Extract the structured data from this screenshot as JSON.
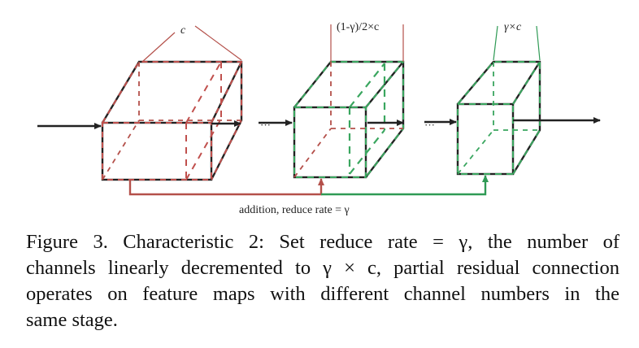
{
  "diagram": {
    "label_c": "c",
    "label_middle": "(1-γ)/2×c",
    "label_right": "γ×c",
    "ellipsis_1": "···",
    "ellipsis_2": "···",
    "bottom_label": "addition, reduce rate = γ",
    "colors": {
      "edge": "#222222",
      "red": "#b4504a",
      "green": "#2f9a55",
      "red_dash": "#c0504d",
      "green_dash": "#3aa65f"
    }
  },
  "caption": {
    "line1": "Figure 3. Characteristic 2: Set reduce rate = γ, the number of",
    "line2": "channels linearly decremented to γ × c, partial residual connection",
    "line3": "operates on feature maps with different channel numbers in the",
    "line4": "same stage."
  }
}
